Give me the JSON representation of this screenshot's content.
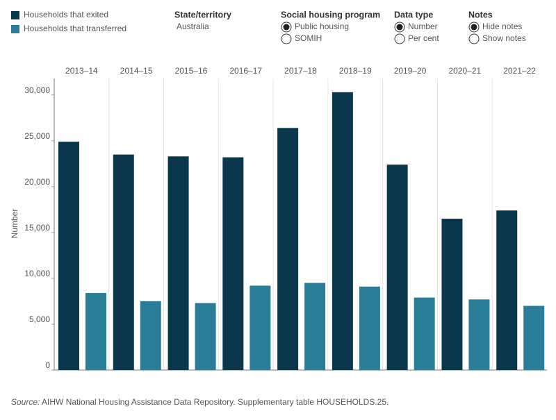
{
  "chart_data": {
    "type": "bar",
    "y_label": "Number",
    "categories": [
      "2013–14",
      "2014–15",
      "2015–16",
      "2016–17",
      "2017–18",
      "2018–19",
      "2019–20",
      "2020–21",
      "2021–22"
    ],
    "series": [
      {
        "name": "Households that exited",
        "color": "#0b374c",
        "values": [
          24900,
          23500,
          23300,
          23200,
          26400,
          30300,
          22400,
          16500,
          17400
        ]
      },
      {
        "name": "Households that transferred",
        "color": "#2a7d97",
        "values": [
          8400,
          7500,
          7300,
          9200,
          9500,
          9100,
          7900,
          7700,
          7000
        ]
      }
    ],
    "ylim": [
      0,
      31800
    ],
    "yticks": [
      0,
      {
        "value": 5000,
        "label": "5,000"
      },
      {
        "value": 10000,
        "label": "10,000"
      },
      {
        "value": 15000,
        "label": "15,000"
      },
      {
        "value": 20000,
        "label": "20,000"
      },
      {
        "value": 25000,
        "label": "25,000"
      },
      {
        "value": 30000,
        "label": "30,000"
      }
    ]
  },
  "controls": [
    {
      "label": "State/territory",
      "value": "Australia"
    },
    {
      "label": "Social housing program",
      "options": [
        "Public housing",
        "SOMIH"
      ],
      "selected": 0
    },
    {
      "label": "Data type",
      "options": [
        "Number",
        "Per cent"
      ],
      "selected": 0
    },
    {
      "label": "Notes",
      "options": [
        "Hide notes",
        "Show notes"
      ],
      "selected": 0
    }
  ],
  "source": {
    "label": "Source:",
    "text": "AIHW National Housing Assistance Data Repository. Supplementary table HOUSEHOLDS.25."
  }
}
